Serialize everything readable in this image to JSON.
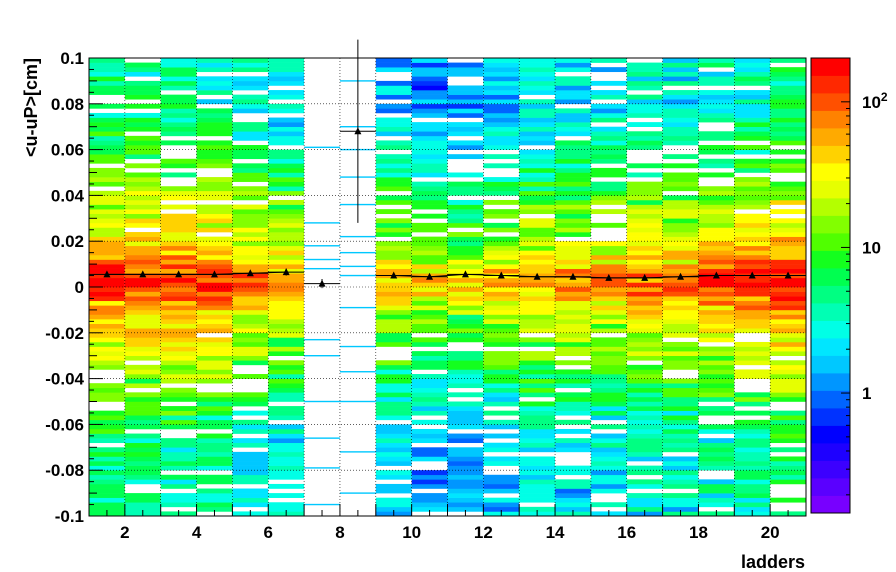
{
  "chart_data": {
    "type": "heatmap",
    "title": "",
    "xlabel": "ladders",
    "ylabel": "<u-uP>[cm]",
    "xlim": [
      1,
      21
    ],
    "ylim": [
      -0.1,
      0.1
    ],
    "x_ticks": [
      "2",
      "4",
      "6",
      "8",
      "10",
      "12",
      "14",
      "16",
      "18",
      "20"
    ],
    "y_ticks": [
      "0.1",
      "0.08",
      "0.06",
      "0.04",
      "0.02",
      "0",
      "-0.02",
      "-0.04",
      "-0.06",
      "-0.08",
      "-0.1"
    ],
    "grid": true,
    "colorbar": {
      "scale": "log",
      "labels": [
        "1",
        "10",
        "10^2"
      ],
      "colors": [
        "#7800ff",
        "#5a00ff",
        "#3c00ff",
        "#1e00ff",
        "#0000ff",
        "#0032ff",
        "#0064ff",
        "#0096ff",
        "#00c8ff",
        "#00e6ff",
        "#00ffe6",
        "#00ffb4",
        "#00ff82",
        "#00ff50",
        "#14ff1e",
        "#50ff00",
        "#82ff00",
        "#b4ff00",
        "#e6ff00",
        "#ffff00",
        "#ffd200",
        "#ffaa00",
        "#ff8200",
        "#ff5000",
        "#ff2800",
        "#ff0000"
      ]
    },
    "density": {
      "ladders": [
        1,
        2,
        3,
        4,
        5,
        6,
        7,
        8,
        9,
        10,
        11,
        12,
        13,
        14,
        15,
        16,
        17,
        18,
        19,
        20
      ],
      "peak_counts": [
        120,
        100,
        110,
        100,
        60,
        35,
        0,
        0,
        40,
        35,
        30,
        35,
        40,
        60,
        50,
        70,
        60,
        120,
        110,
        150
      ],
      "background_counts": [
        8,
        8,
        8,
        7,
        5,
        4,
        0,
        0,
        3,
        2,
        2,
        3,
        4,
        4,
        4,
        5,
        5,
        6,
        7,
        9
      ],
      "sparse_lines_y": {
        "7": [
          -0.095,
          -0.079,
          -0.066,
          -0.05,
          -0.03,
          -0.023,
          0.008,
          0.012,
          0.018,
          0.028,
          0.061
        ],
        "8": [
          -0.09,
          -0.072,
          -0.05,
          -0.037,
          -0.026,
          -0.009,
          0.005,
          0.009,
          0.015,
          0.022,
          0.036,
          0.048,
          0.06,
          0.07,
          0.09
        ]
      }
    },
    "series": [
      {
        "x": [
          1.5,
          2.5,
          3.5,
          4.5,
          5.5,
          6.5,
          7.5,
          8.5,
          9.5,
          10.5,
          11.5,
          12.5,
          13.5,
          14.5,
          15.5,
          16.5,
          17.5,
          18.5,
          19.5,
          20.5
        ],
        "y": [
          0.0055,
          0.0055,
          0.0055,
          0.0055,
          0.006,
          0.0065,
          0.0015,
          0.068,
          0.005,
          0.0045,
          0.0055,
          0.005,
          0.0045,
          0.0045,
          0.004,
          0.004,
          0.0045,
          0.005,
          0.005,
          0.005
        ],
        "yerr": [
          0.001,
          0.001,
          0.001,
          0.001,
          0.001,
          0.0015,
          0.002,
          0.04,
          0.001,
          0.001,
          0.001,
          0.001,
          0.001,
          0.001,
          0.001,
          0.001,
          0.001,
          0.001,
          0.001,
          0.001
        ]
      }
    ]
  }
}
